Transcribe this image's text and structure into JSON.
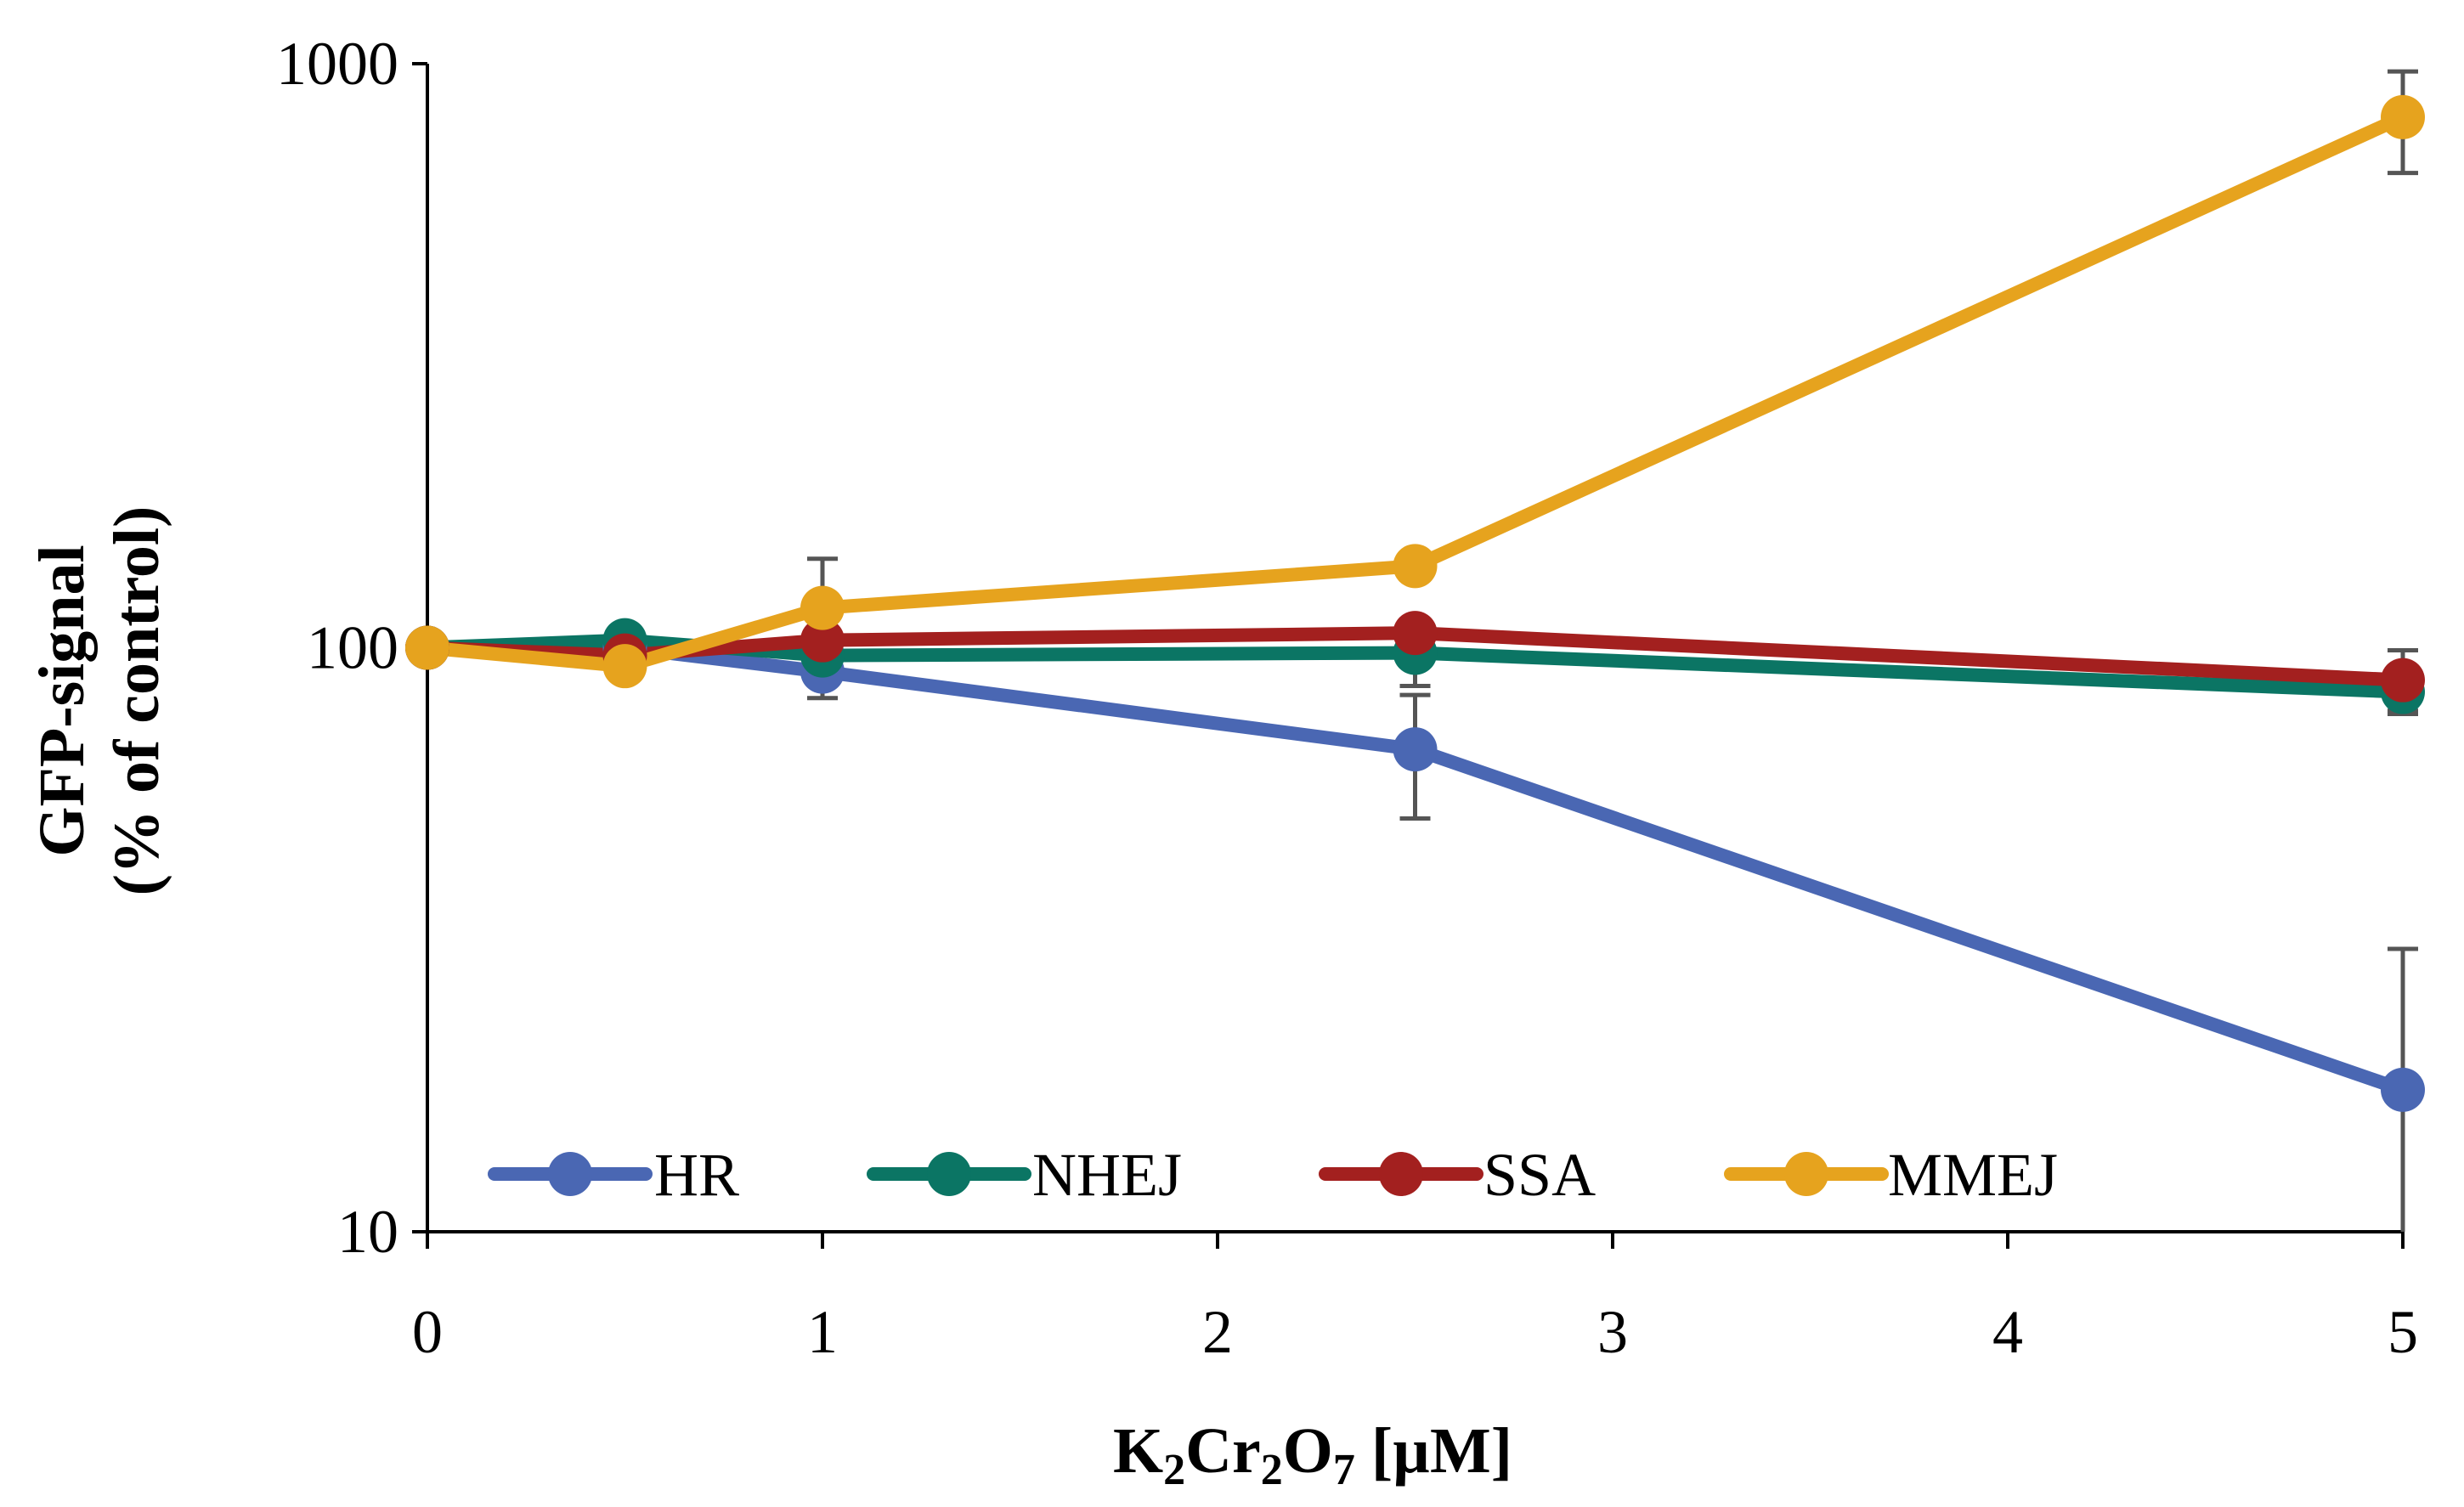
{
  "chart_data": {
    "type": "line",
    "title": "",
    "xlabel": {
      "main": "K",
      "sub1": "2",
      "mid1": "Cr",
      "sub2": "2",
      "mid2": "O",
      "sub3": "7",
      "unit": " [µM]"
    },
    "ylabel": {
      "line1": "GFP-signal",
      "line2": "(% of control)"
    },
    "xlim": [
      0,
      5
    ],
    "ylim": [
      10,
      1000
    ],
    "yscale": "log",
    "x_ticks": [
      "0",
      "1",
      "2",
      "3",
      "4",
      "5"
    ],
    "y_ticks": [
      "10",
      "100",
      "1000"
    ],
    "legend_position": "bottom-inside",
    "series": [
      {
        "name": "HR",
        "color": "#4a67b3",
        "x": [
          0,
          0.5,
          1,
          2.5,
          5
        ],
        "y": [
          100,
          100,
          91,
          67,
          17.5
        ],
        "err": [
          null,
          null,
          9,
          16,
          13
        ]
      },
      {
        "name": "NHEJ",
        "color": "#0b7564",
        "x": [
          0,
          0.5,
          1,
          2.5,
          5
        ],
        "y": [
          100,
          103,
          97,
          98,
          84
        ],
        "err": [
          null,
          null,
          null,
          12,
          6
        ]
      },
      {
        "name": "SSA",
        "color": "#a3201f",
        "x": [
          0,
          0.5,
          1,
          2.5,
          5
        ],
        "y": [
          100,
          97,
          103,
          106,
          88
        ],
        "err": [
          null,
          null,
          null,
          null,
          11
        ]
      },
      {
        "name": "MMEJ",
        "color": "#e6a31e",
        "x": [
          0,
          0.5,
          1,
          2.5,
          5
        ],
        "y": [
          100,
          93,
          117,
          138,
          810
        ],
        "err": [
          null,
          null,
          25,
          null,
          160
        ]
      }
    ]
  }
}
